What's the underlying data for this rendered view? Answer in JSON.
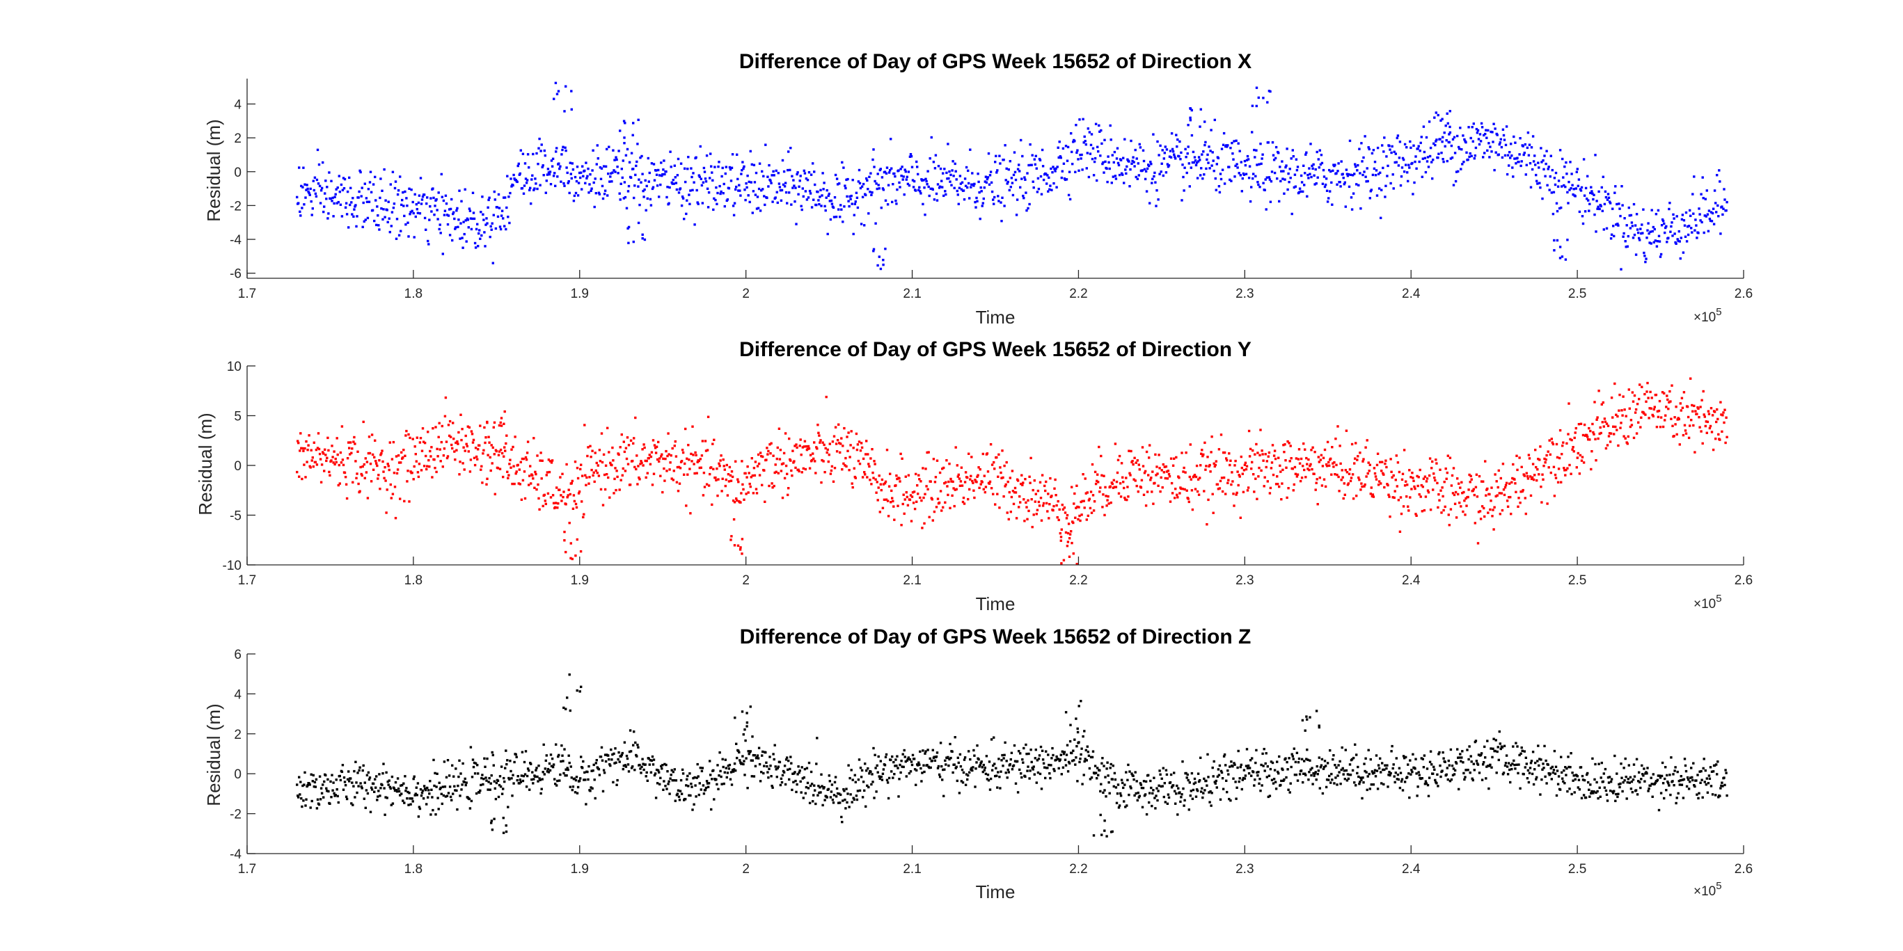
{
  "chart_data": [
    {
      "type": "scatter",
      "title": "Difference of Day of GPS Week 15652 of Direction X",
      "xlabel": "Time",
      "ylabel": "Residual (m)",
      "x_exponent_label": "×10",
      "x_exponent_power": "5",
      "xlim": [
        170000,
        260000
      ],
      "ylim": [
        -6.3,
        5.5
      ],
      "xticks": [
        170000,
        180000,
        190000,
        200000,
        210000,
        220000,
        230000,
        240000,
        250000,
        260000
      ],
      "xtick_labels": [
        "1.7",
        "1.8",
        "1.9",
        "2",
        "2.1",
        "2.2",
        "2.3",
        "2.4",
        "2.5",
        "2.6"
      ],
      "yticks": [
        -6,
        -4,
        -2,
        0,
        2,
        4
      ],
      "ytick_labels": [
        "-6",
        "-4",
        "-2",
        "0",
        "2",
        "4"
      ],
      "grid": false,
      "color": "#0000ff",
      "series": [
        {
          "x_range": [
            173000,
            259000
          ],
          "trend_knots": [
            [
              173000,
              -1.2
            ],
            [
              177000,
              -1.8
            ],
            [
              180000,
              -2.2
            ],
            [
              182000,
              -2.6
            ],
            [
              184000,
              -3.0
            ],
            [
              185500,
              -2.0
            ],
            [
              186000,
              -0.5
            ],
            [
              188000,
              0.3
            ],
            [
              189000,
              0.5
            ],
            [
              190000,
              -0.2
            ],
            [
              195000,
              -0.6
            ],
            [
              200000,
              -0.8
            ],
            [
              204000,
              -1.0
            ],
            [
              206000,
              -2.0
            ],
            [
              207000,
              -0.8
            ],
            [
              210000,
              -0.6
            ],
            [
              215000,
              -0.8
            ],
            [
              218000,
              -0.2
            ],
            [
              220000,
              1.5
            ],
            [
              222000,
              0.8
            ],
            [
              224000,
              0.2
            ],
            [
              228000,
              0.6
            ],
            [
              230000,
              0.0
            ],
            [
              235000,
              -0.3
            ],
            [
              238000,
              0.2
            ],
            [
              240000,
              0.8
            ],
            [
              242000,
              1.5
            ],
            [
              245000,
              1.8
            ],
            [
              247000,
              0.8
            ],
            [
              249000,
              -0.5
            ],
            [
              251000,
              -1.5
            ],
            [
              253000,
              -3.0
            ],
            [
              254000,
              -3.8
            ],
            [
              256000,
              -3.3
            ],
            [
              257500,
              -2.5
            ],
            [
              259000,
              -2.0
            ]
          ],
          "noise_sd": 0.9,
          "n_points": 2000,
          "spikes": [
            [
              189000,
              3.0,
              6.0
            ],
            [
              193000,
              1.5,
              3.5
            ],
            [
              193500,
              -5.0,
              -3.0
            ],
            [
              242000,
              2.0,
              4.0
            ],
            [
              249000,
              -6.0,
              -4.0
            ],
            [
              208000,
              -6.0,
              -4.5
            ],
            [
              227000,
              2.5,
              4.0
            ],
            [
              231000,
              3.8,
              5.0
            ]
          ]
        }
      ]
    },
    {
      "type": "scatter",
      "title": "Difference of Day of GPS Week 15652 of Direction Y",
      "xlabel": "Time",
      "ylabel": "Residual (m)",
      "x_exponent_label": "×10",
      "x_exponent_power": "5",
      "xlim": [
        170000,
        260000
      ],
      "ylim": [
        -10,
        10
      ],
      "xticks": [
        170000,
        180000,
        190000,
        200000,
        210000,
        220000,
        230000,
        240000,
        250000,
        260000
      ],
      "xtick_labels": [
        "1.7",
        "1.8",
        "1.9",
        "2",
        "2.1",
        "2.2",
        "2.3",
        "2.4",
        "2.5",
        "2.6"
      ],
      "yticks": [
        -10,
        -5,
        0,
        5,
        10
      ],
      "ytick_labels": [
        "-10",
        "-5",
        "0",
        "5",
        "10"
      ],
      "grid": false,
      "color": "#ff0000",
      "series": [
        {
          "x_range": [
            173000,
            259000
          ],
          "trend_knots": [
            [
              173000,
              1.0
            ],
            [
              176000,
              0.5
            ],
            [
              179000,
              -0.5
            ],
            [
              182000,
              2.5
            ],
            [
              185000,
              1.0
            ],
            [
              188000,
              -2.0
            ],
            [
              189500,
              -3.5
            ],
            [
              191000,
              0.0
            ],
            [
              195000,
              0.5
            ],
            [
              198000,
              -0.5
            ],
            [
              199500,
              -2.5
            ],
            [
              201000,
              0.0
            ],
            [
              206000,
              1.5
            ],
            [
              208000,
              -2.0
            ],
            [
              210000,
              -3.0
            ],
            [
              214000,
              -1.0
            ],
            [
              216000,
              -2.0
            ],
            [
              218000,
              -3.5
            ],
            [
              219500,
              -5.0
            ],
            [
              221000,
              -2.5
            ],
            [
              223000,
              -0.5
            ],
            [
              226000,
              -1.5
            ],
            [
              230000,
              -0.5
            ],
            [
              235000,
              0.0
            ],
            [
              238000,
              -1.0
            ],
            [
              240000,
              -2.0
            ],
            [
              243000,
              -3.0
            ],
            [
              245000,
              -3.5
            ],
            [
              247000,
              -1.0
            ],
            [
              249000,
              1.5
            ],
            [
              251000,
              3.0
            ],
            [
              253000,
              5.0
            ],
            [
              254000,
              6.0
            ],
            [
              256000,
              5.0
            ],
            [
              259000,
              3.5
            ]
          ],
          "noise_sd": 1.6,
          "n_points": 2000,
          "spikes": [
            [
              189500,
              -9.5,
              -7.0
            ],
            [
              199500,
              -9.0,
              -6.5
            ],
            [
              219500,
              -10,
              -7.0
            ],
            [
              185000,
              4.0,
              5.5
            ]
          ]
        }
      ]
    },
    {
      "type": "scatter",
      "title": "Difference of Day of GPS Week 15652 of Direction Z",
      "xlabel": "Time",
      "ylabel": "Residual (m)",
      "x_exponent_label": "×10",
      "x_exponent_power": "5",
      "xlim": [
        170000,
        260000
      ],
      "ylim": [
        -4,
        6
      ],
      "xticks": [
        170000,
        180000,
        190000,
        200000,
        210000,
        220000,
        230000,
        240000,
        250000,
        260000
      ],
      "xtick_labels": [
        "1.7",
        "1.8",
        "1.9",
        "2",
        "2.1",
        "2.2",
        "2.3",
        "2.4",
        "2.5",
        "2.6"
      ],
      "yticks": [
        -4,
        -2,
        0,
        2,
        4,
        6
      ],
      "ytick_labels": [
        "-4",
        "-2",
        "0",
        "2",
        "4",
        "6"
      ],
      "grid": false,
      "color": "#000000",
      "series": [
        {
          "x_range": [
            173000,
            259000
          ],
          "trend_knots": [
            [
              173000,
              -0.8
            ],
            [
              178000,
              -0.5
            ],
            [
              181000,
              -1.0
            ],
            [
              184000,
              -0.3
            ],
            [
              187000,
              0.0
            ],
            [
              189000,
              0.5
            ],
            [
              190000,
              -0.5
            ],
            [
              192000,
              0.8
            ],
            [
              194000,
              0.5
            ],
            [
              196000,
              -0.8
            ],
            [
              198000,
              -0.5
            ],
            [
              200000,
              1.0
            ],
            [
              202000,
              0.0
            ],
            [
              206000,
              -1.0
            ],
            [
              208000,
              0.2
            ],
            [
              210000,
              0.5
            ],
            [
              215000,
              0.3
            ],
            [
              218000,
              0.5
            ],
            [
              220000,
              0.8
            ],
            [
              222000,
              -0.6
            ],
            [
              226000,
              -0.8
            ],
            [
              230000,
              0.0
            ],
            [
              235000,
              0.3
            ],
            [
              240000,
              0.0
            ],
            [
              245000,
              0.8
            ],
            [
              248000,
              0.3
            ],
            [
              251000,
              -0.5
            ],
            [
              255000,
              -0.2
            ],
            [
              259000,
              -0.5
            ]
          ],
          "noise_sd": 0.55,
          "n_points": 2000,
          "spikes": [
            [
              189500,
              3.0,
              5.0
            ],
            [
              199800,
              1.5,
              3.8
            ],
            [
              219800,
              2.0,
              4.0
            ],
            [
              185000,
              -3.0,
              -2.0
            ],
            [
              221500,
              -3.2,
              -2.0
            ],
            [
              234000,
              2.0,
              3.3
            ]
          ]
        }
      ]
    }
  ]
}
